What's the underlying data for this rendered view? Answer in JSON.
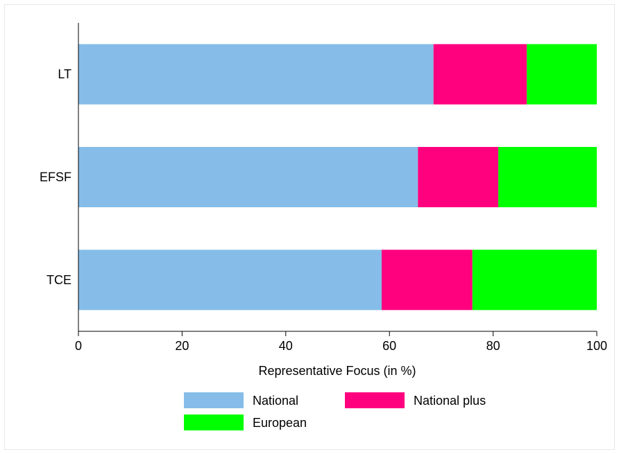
{
  "chart_data": {
    "type": "bar",
    "orientation": "horizontal",
    "stacked": true,
    "categories": [
      "LT",
      "EFSF",
      "TCE"
    ],
    "series": [
      {
        "name": "National",
        "values": [
          68.5,
          65.5,
          58.5
        ],
        "color": "#85bde8"
      },
      {
        "name": "National plus",
        "values": [
          18.0,
          15.5,
          17.5
        ],
        "color": "#ff007f"
      },
      {
        "name": "European",
        "values": [
          13.5,
          19.0,
          24.0
        ],
        "color": "#00ff00"
      }
    ],
    "xlabel": "Representative Focus (in %)",
    "ylabel": "",
    "xlim": [
      0,
      100
    ],
    "xticks": [
      "0",
      "20",
      "40",
      "60",
      "80",
      "100"
    ],
    "grid": false,
    "legend_position": "bottom"
  }
}
